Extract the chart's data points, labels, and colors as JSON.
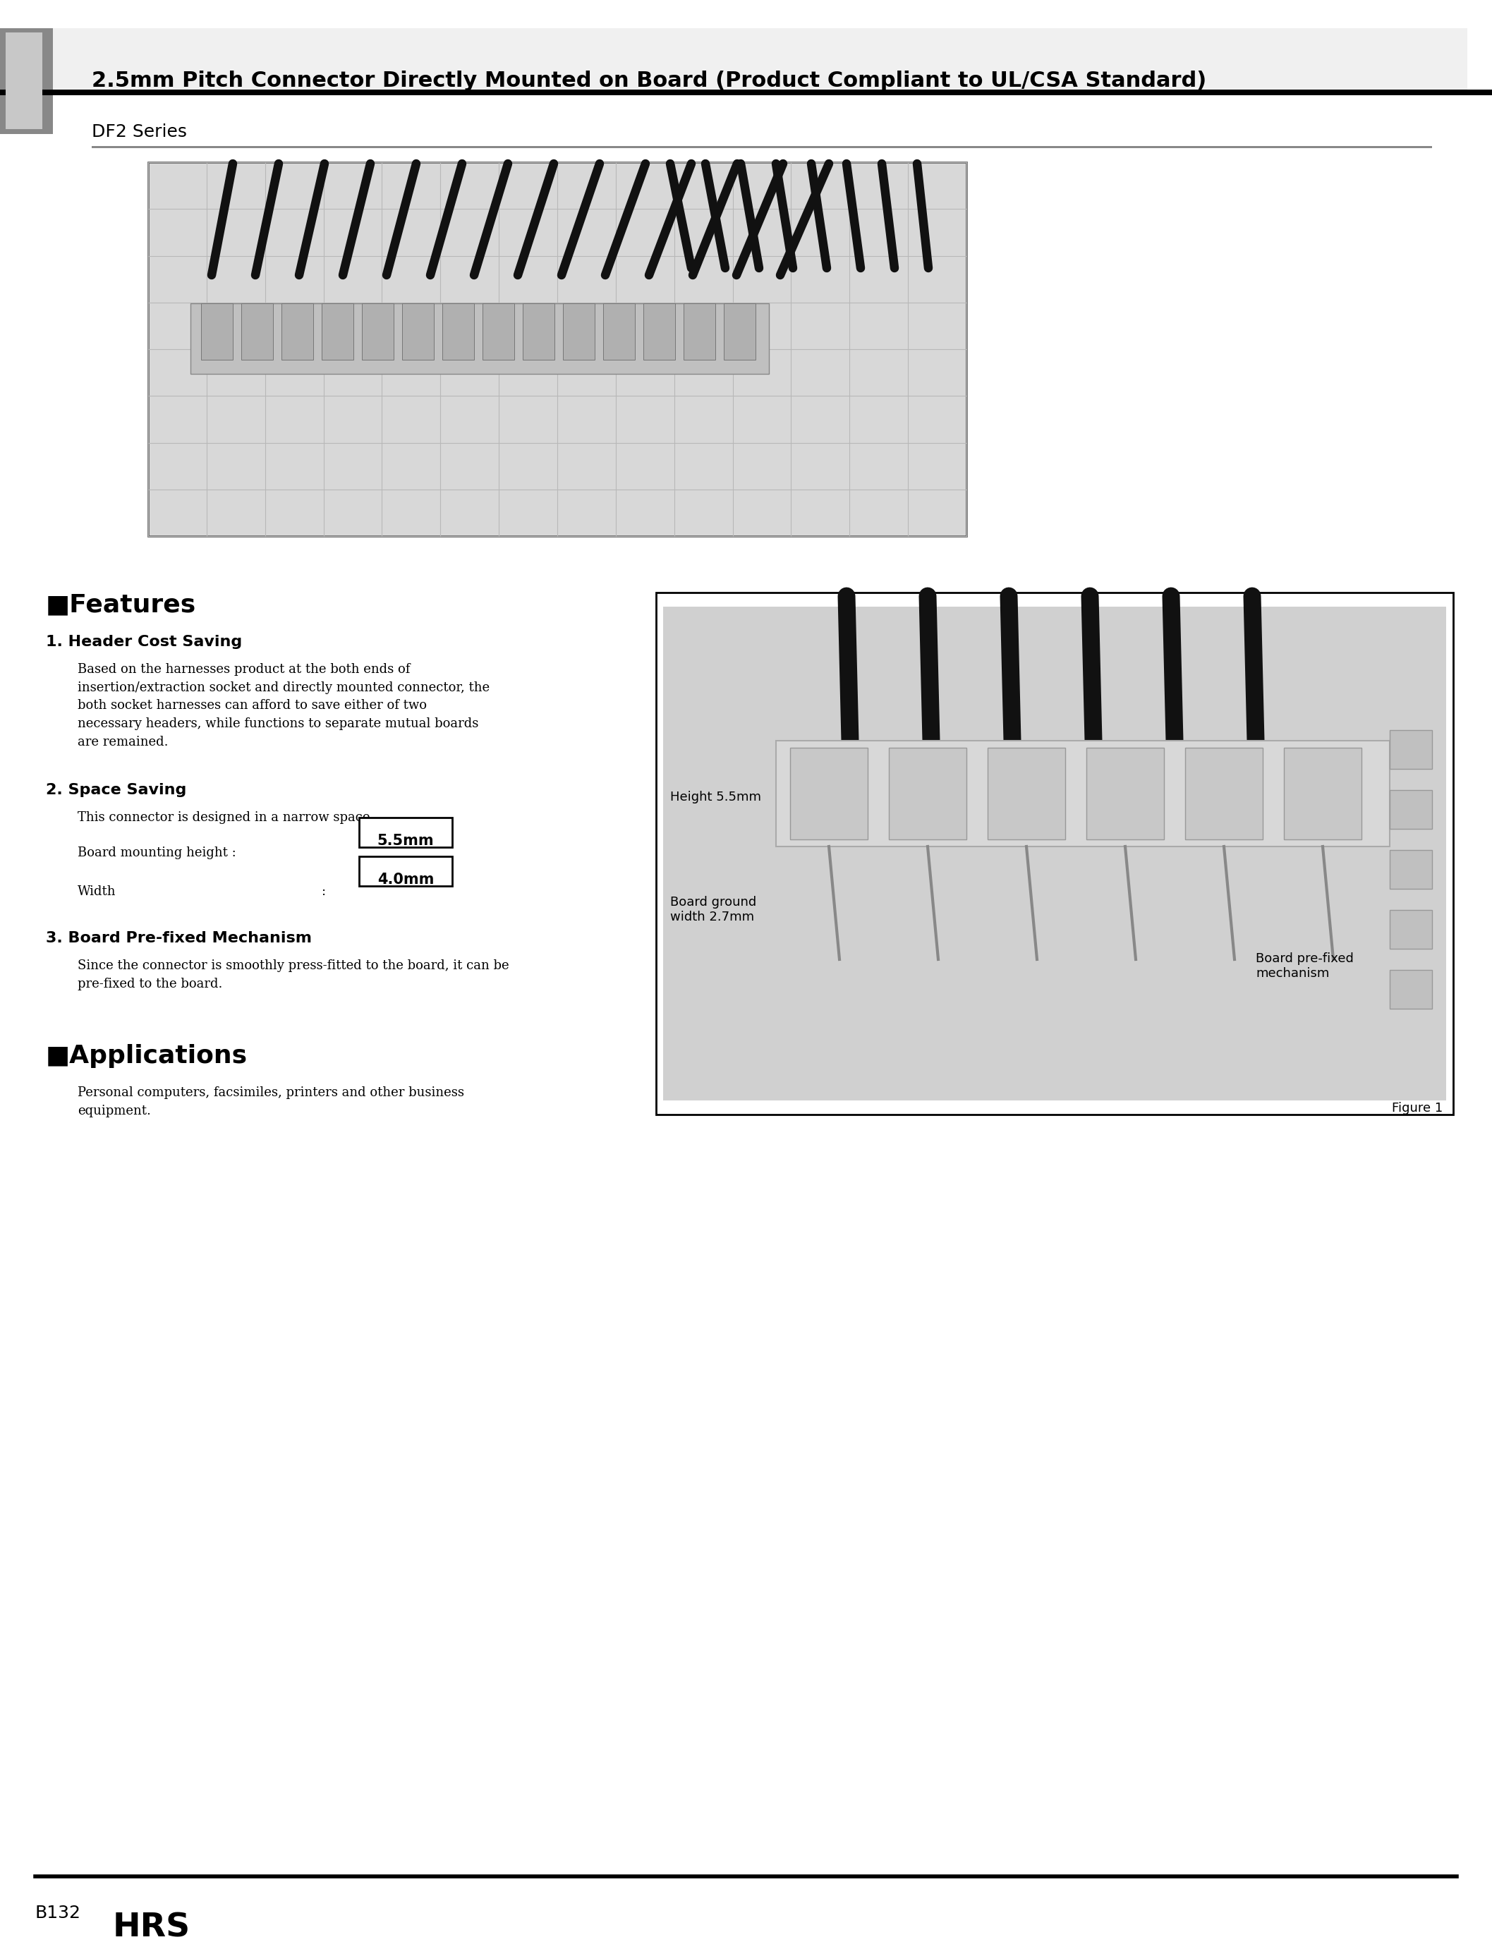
{
  "bg_color": "#ffffff",
  "header": {
    "title_text": "2.5mm Pitch Connector Directly Mounted on Board (Product Compliant to UL/CSA Standard)",
    "subtitle_text": "DF2 Series"
  },
  "features": {
    "header": "■Features",
    "item1_title": "1. Header Cost Saving",
    "item1_body": "Based on the harnesses product at the both ends of\ninsertion/extraction socket and directly mounted connector, the\nboth socket harnesses can afford to save either of two\nnecessary headers, while functions to separate mutual boards\nare remained.",
    "item2_title": "2. Space Saving",
    "item2_body": "This connector is designed in a narrow space.",
    "board_mounting_label": "Board mounting height : ",
    "board_mounting_value": "5.5mm",
    "width_label": "Width",
    "width_colon": ":",
    "width_value": "4.0mm",
    "item3_title": "3. Board Pre-fixed Mechanism",
    "item3_body": "Since the connector is smoothly press-fitted to the board, it can be\npre-fixed to the board."
  },
  "applications": {
    "header": "■Applications",
    "body": "Personal computers, facsimiles, printers and other business\nequipment."
  },
  "figure": {
    "caption": "Figure 1",
    "annot_height": "Height 5.5mm",
    "annot_board_ground": "Board ground\nwidth 2.7mm",
    "annot_prefixed": "Board pre-fixed\nmechanism"
  },
  "footer": {
    "page_label": "B132",
    "logo_text": "HRS"
  }
}
